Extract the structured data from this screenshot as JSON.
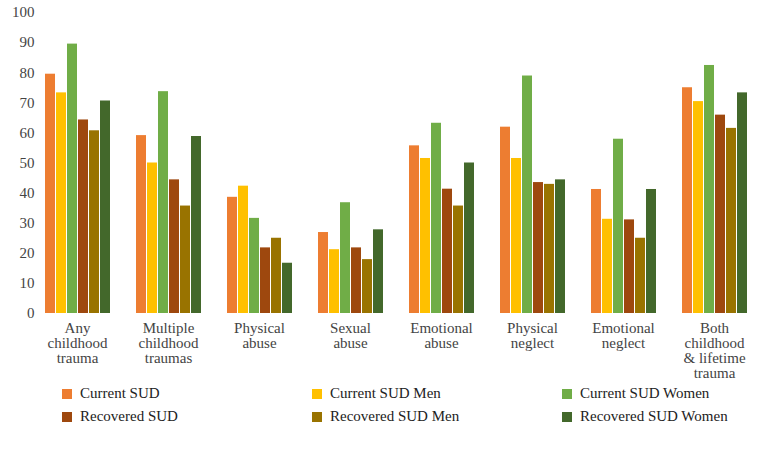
{
  "chart_data": {
    "type": "bar",
    "categories": [
      "Any\nchildhood\ntrauma",
      "Multiple\nchildhood\ntraumas",
      "Physical\nabuse",
      "Sexual\nabuse",
      "Emotional\nabuse",
      "Physical\nneglect",
      "Emotional\nneglect",
      "Both\nchildhood\n& lifetime\ntrauma"
    ],
    "series": [
      {
        "name": "Current SUD",
        "color": "#ED7D31",
        "values": [
          79.5,
          59.1,
          38.6,
          26.9,
          55.7,
          61.9,
          41.2,
          75
        ]
      },
      {
        "name": "Current SUD Men",
        "color": "#FFC000",
        "values": [
          73.3,
          50,
          42.3,
          21.2,
          51.5,
          51.5,
          31.3,
          70.4
        ]
      },
      {
        "name": "Current SUD Women",
        "color": "#70AD47",
        "values": [
          89.5,
          73.7,
          31.6,
          36.8,
          63.2,
          78.9,
          57.9,
          82.4
        ]
      },
      {
        "name": "Recovered SUD",
        "color": "#9E480E",
        "values": [
          64.3,
          44.4,
          21.8,
          21.8,
          41.3,
          43.5,
          31.1,
          65.9
        ]
      },
      {
        "name": "Recovered SUD Men",
        "color": "#997300",
        "values": [
          60.7,
          35.7,
          25,
          17.9,
          35.7,
          42.9,
          25,
          61.5
        ]
      },
      {
        "name": "Recovered SUD Women",
        "color": "#43682B",
        "values": [
          70.6,
          58.8,
          16.7,
          27.8,
          50,
          44.4,
          41.2,
          73.3
        ]
      }
    ],
    "ylim": [
      0,
      100
    ],
    "yticks": [
      0,
      10,
      20,
      30,
      40,
      50,
      60,
      70,
      80,
      90,
      100
    ],
    "grid": false,
    "legend": "bottom"
  }
}
